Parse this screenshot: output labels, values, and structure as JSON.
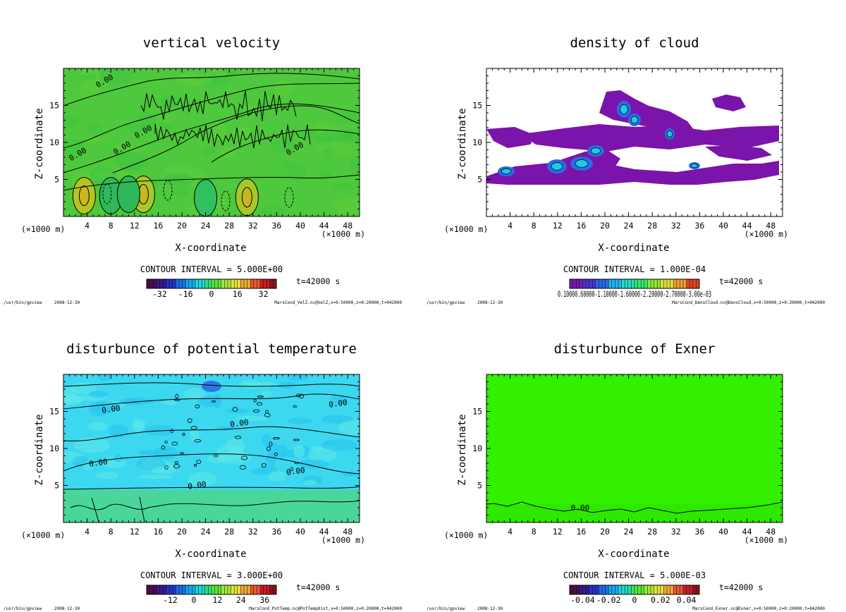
{
  "footer_program": "/usr/bin/gpview",
  "footer_date": "2008-12-30",
  "chart_data": [
    {
      "type": "heatmap",
      "title": "vertical velocity",
      "xlabel": "X-coordinate",
      "ylabel": "Z-coordinate",
      "xunit": "(×1000 m)",
      "xticks": [
        4,
        8,
        12,
        16,
        20,
        24,
        28,
        32,
        36,
        40,
        44,
        48
      ],
      "yticks": [
        5,
        10,
        15
      ],
      "xlim": [
        0,
        50
      ],
      "ylim": [
        0,
        20
      ],
      "background_color": "#4ec83c",
      "contour_label": "0.00",
      "contour_interval": "CONTOUR INTERVAL = 5.000E+00",
      "colorbar_ticks": [
        "-32",
        "-16",
        "0",
        "16",
        "32"
      ],
      "colorbar_values": [
        -32,
        -16,
        0,
        16,
        32
      ],
      "colorbar_range": [
        -40,
        40
      ],
      "time": "t=42000 s",
      "source": "MarsCond_VelZ.nc@VelZ,x=0:50000,z=0:20000,t=042000"
    },
    {
      "type": "heatmap",
      "title": "density of cloud",
      "xlabel": "X-coordinate",
      "ylabel": "Z-coordinate",
      "xunit": "(×1000 m)",
      "xticks": [
        4,
        8,
        12,
        16,
        20,
        24,
        28,
        32,
        36,
        40,
        44,
        48
      ],
      "yticks": [
        5,
        10,
        15
      ],
      "xlim": [
        0,
        50
      ],
      "ylim": [
        0,
        20
      ],
      "background_color": "#ffffff",
      "contour_label": "",
      "contour_interval": "CONTOUR INTERVAL = 1.000E-04",
      "colorbar_ticks": [
        "0.10000.60000-1.10000-1.60000-2.20000-2.70000-3.00e-03"
      ],
      "colorbar_values": [],
      "colorbar_range": [
        0,
        1
      ],
      "time": "t=42000 s",
      "source": "MarsCond_DensCloud.nc@DensCloud,x=0:50000,z=0:20000,t=042000"
    },
    {
      "type": "heatmap",
      "title": "disturbunce of potential temperature",
      "xlabel": "X-coordinate",
      "ylabel": "Z-coordinate",
      "xunit": "(×1000 m)",
      "xticks": [
        4,
        8,
        12,
        16,
        20,
        24,
        28,
        32,
        36,
        40,
        44,
        48
      ],
      "yticks": [
        5,
        10,
        15
      ],
      "xlim": [
        0,
        50
      ],
      "ylim": [
        0,
        20
      ],
      "background_color": "#3cd8f0",
      "contour_label": "0.00",
      "contour_interval": "CONTOUR INTERVAL = 3.000E+00",
      "colorbar_ticks": [
        "-12",
        "0",
        "12",
        "24",
        "36"
      ],
      "colorbar_values": [
        -12,
        0,
        12,
        24,
        36
      ],
      "colorbar_range": [
        -24,
        42
      ],
      "time": "t=42000 s",
      "source": "MarsCond_PotTemp.nc@PotTempDist,x=0:50000,z=0:20000,t=042000"
    },
    {
      "type": "heatmap",
      "title": "disturbunce of Exner",
      "xlabel": "X-coordinate",
      "ylabel": "Z-coordinate",
      "xunit": "(×1000 m)",
      "xticks": [
        4,
        8,
        12,
        16,
        20,
        24,
        28,
        32,
        36,
        40,
        44,
        48
      ],
      "yticks": [
        5,
        10,
        15
      ],
      "xlim": [
        0,
        50
      ],
      "ylim": [
        0,
        20
      ],
      "background_color": "#33f000",
      "contour_label": "0.00",
      "contour_interval": "CONTOUR INTERVAL = 5.000E-03",
      "colorbar_ticks": [
        "-0.04",
        "-0.02",
        "0",
        "0.02",
        "0.04"
      ],
      "colorbar_values": [
        -0.04,
        -0.02,
        0,
        0.02,
        0.04
      ],
      "colorbar_range": [
        -0.05,
        0.05
      ],
      "time": "t=42000 s",
      "source": "MarsCond_Exner.nc@Exner,x=0:50000,z=0:20000,t=042000"
    }
  ]
}
